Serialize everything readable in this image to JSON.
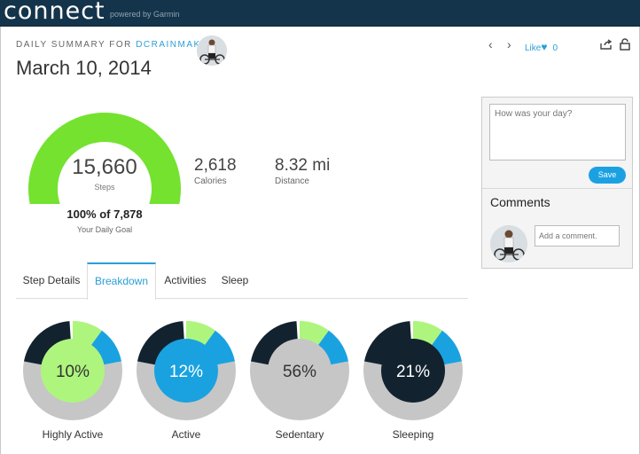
{
  "app": {
    "logo": "connect",
    "powered_by": "powered by Garmin"
  },
  "header": {
    "summary_prefix": "DAILY SUMMARY FOR ",
    "username": "DCRAINMAKER",
    "date": "March 10, 2014",
    "prev_arrow": "‹",
    "next_arrow": "›",
    "like_label": "Like",
    "like_count": "0"
  },
  "steps": {
    "value": "15,660",
    "label": "Steps",
    "goal_text": "100% of 7,878",
    "goal_label": "Your Daily Goal",
    "goal_fraction": 1.0
  },
  "stats": [
    {
      "value": "2,618",
      "label": "Calories"
    },
    {
      "value": "8.32 mi",
      "label": "Distance"
    }
  ],
  "tabs": [
    {
      "label": "Step Details",
      "active": false
    },
    {
      "label": "Breakdown",
      "active": true
    },
    {
      "label": "Activities",
      "active": false
    },
    {
      "label": "Sleep",
      "active": false
    }
  ],
  "breakdown": [
    {
      "label": "Highly Active",
      "percent": "10%",
      "fraction": 0.1,
      "center_color": "#aef57e",
      "text_color": "#333333"
    },
    {
      "label": "Active",
      "percent": "12%",
      "fraction": 0.12,
      "center_color": "#1aa2e0",
      "text_color": "#ffffff"
    },
    {
      "label": "Sedentary",
      "percent": "56%",
      "fraction": 0.56,
      "center_color": "#c6c6c6",
      "text_color": "#333333"
    },
    {
      "label": "Sleeping",
      "percent": "21%",
      "fraction": 0.21,
      "center_color": "#13222f",
      "text_color": "#ffffff"
    }
  ],
  "colors": {
    "gauge": "#74e22f",
    "highly_active": "#aef57e",
    "active": "#1aa2e0",
    "sedentary": "#c6c6c6",
    "sleeping": "#13222f",
    "accent": "#2b9fd8",
    "topbar": "#14344b"
  },
  "sidebar": {
    "day_placeholder": "How was your day?",
    "save_label": "Save",
    "comments_title": "Comments",
    "comment_placeholder": "Add a comment."
  }
}
